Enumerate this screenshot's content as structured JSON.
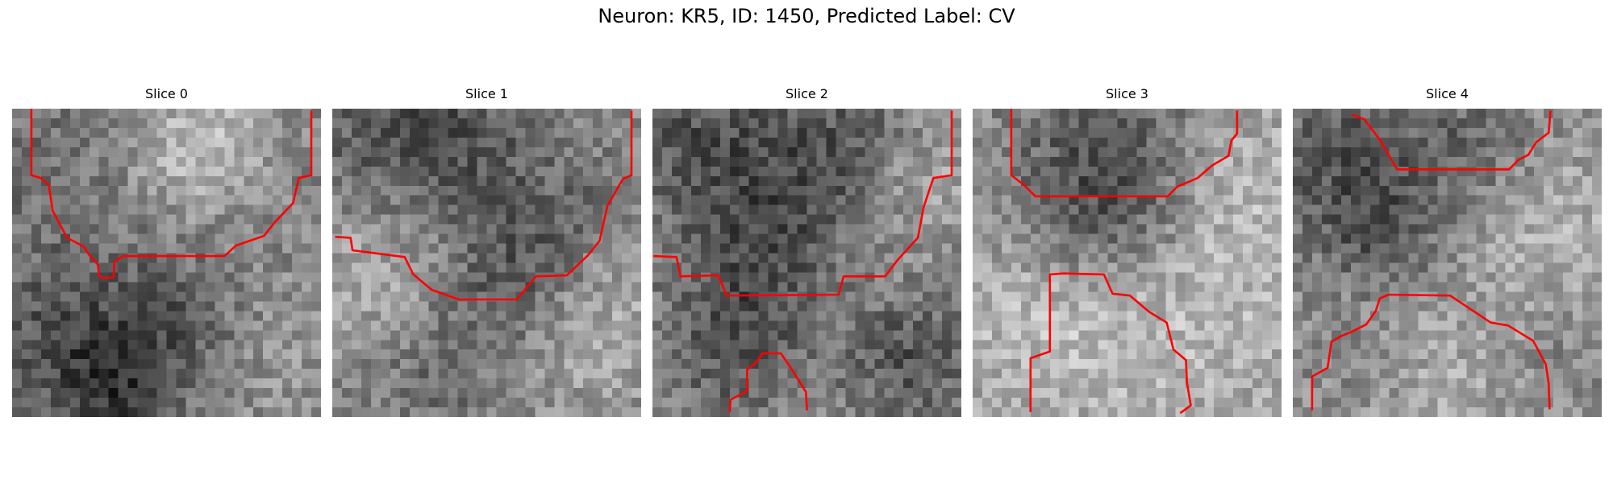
{
  "figure": {
    "title": "Neuron: KR5, ID: 1450, Predicted Label: CV"
  },
  "contour_color": "#ff0000",
  "colormap": "gray",
  "panels": [
    {
      "title": "Slice 0"
    },
    {
      "title": "Slice 1"
    },
    {
      "title": "Slice 2"
    },
    {
      "title": "Slice 3"
    },
    {
      "title": "Slice 4"
    }
  ]
}
